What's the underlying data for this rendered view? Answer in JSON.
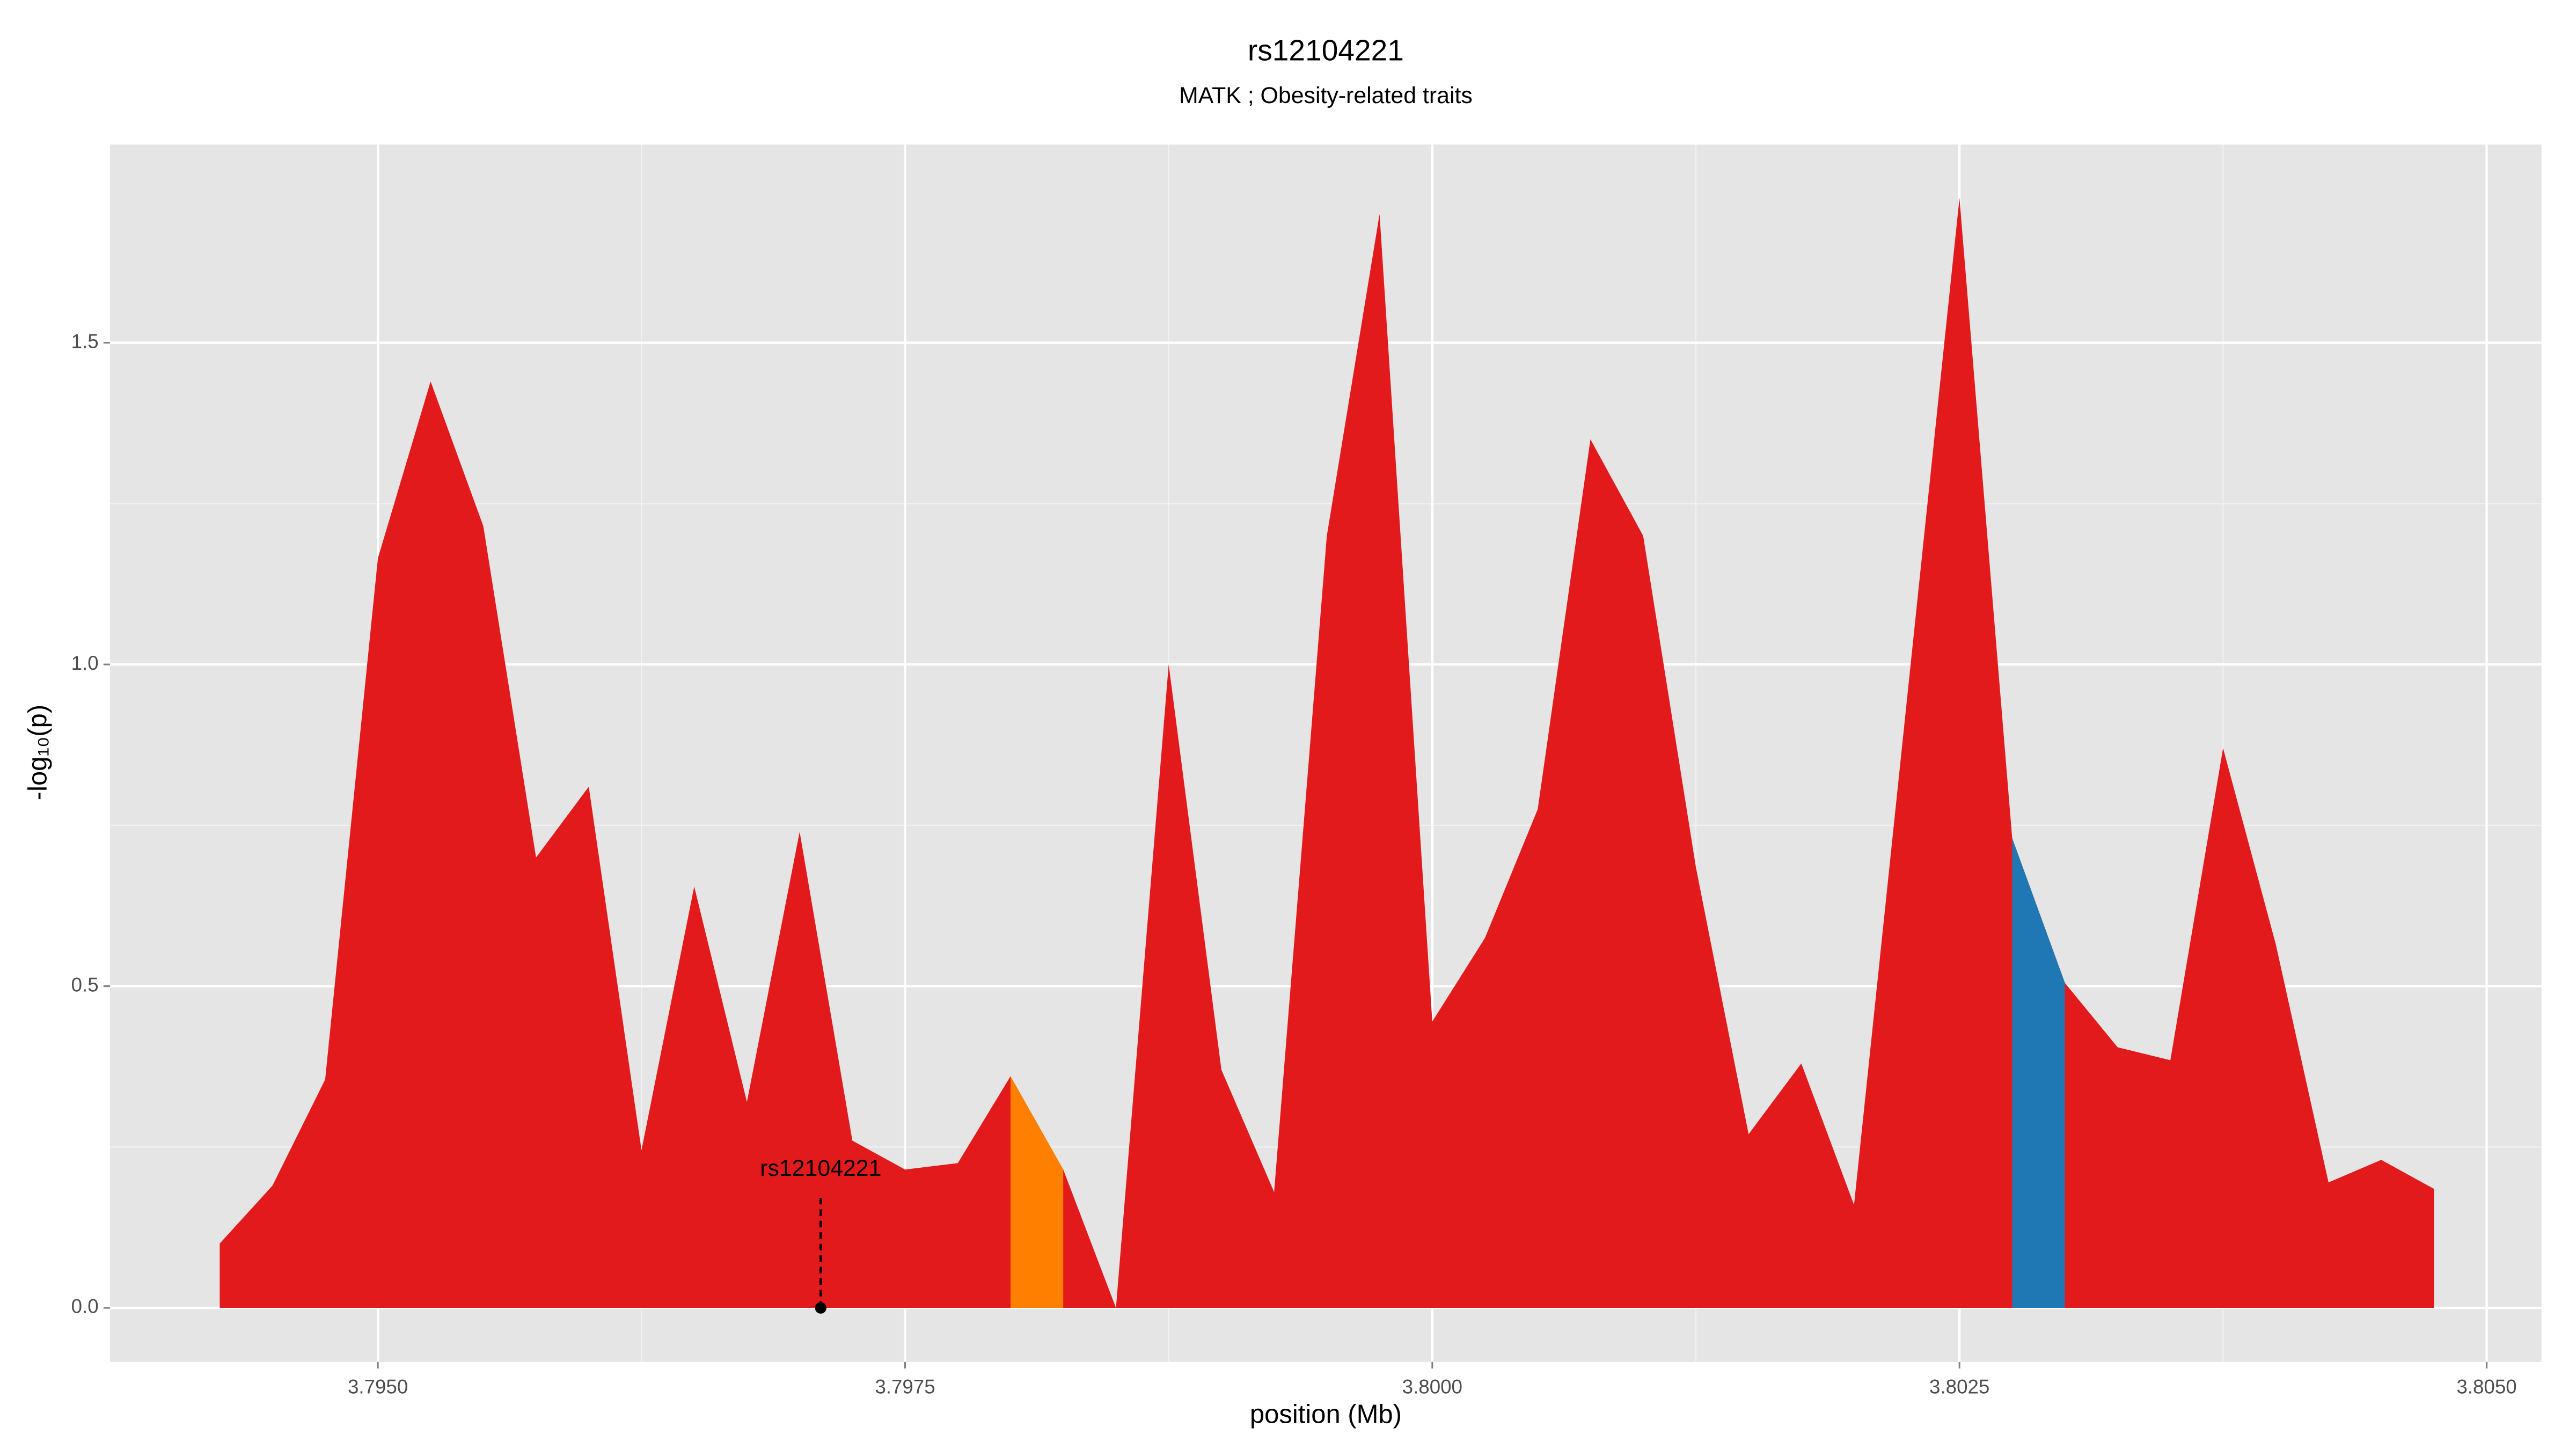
{
  "chart_data": {
    "type": "area",
    "title": "rs12104221",
    "subtitle": "MATK ; Obesity-related traits",
    "x_label": "position (Mb)",
    "y_label": "-log₁₀(p)",
    "x": [
      3.79425,
      3.7945,
      3.79475,
      3.795,
      3.79525,
      3.7955,
      3.79575,
      3.796,
      3.79625,
      3.7965,
      3.79675,
      3.797,
      3.79725,
      3.7975,
      3.79775,
      3.798,
      3.79825,
      3.7985,
      3.79875,
      3.799,
      3.79925,
      3.7995,
      3.79975,
      3.8,
      3.80025,
      3.8005,
      3.80075,
      3.801,
      3.80125,
      3.8015,
      3.80175,
      3.802,
      3.8025,
      3.80275,
      3.803,
      3.80325,
      3.8035,
      3.80375,
      3.804,
      3.80425,
      3.8045,
      3.80475
    ],
    "series": [
      {
        "color": "#e31a1c",
        "values": [
          0.1,
          0.19,
          0.355,
          1.165,
          1.44,
          1.215,
          0.7,
          0.81,
          0.245,
          0.655,
          0.32,
          0.74,
          0.26,
          0.215,
          0.225,
          0.36,
          0.215,
          0.0,
          1.0,
          0.37,
          0.18,
          1.2,
          1.7,
          0.445,
          0.575,
          0.775,
          1.35,
          1.2,
          0.685,
          0.27,
          0.38,
          0.16,
          1.725,
          0.73,
          0.505,
          0.405,
          0.385,
          0.87,
          0.565,
          0.195,
          0.23,
          0.185
        ]
      },
      {
        "color": "#ff7f00",
        "values": [
          null,
          null,
          null,
          null,
          null,
          null,
          null,
          null,
          null,
          null,
          null,
          null,
          null,
          null,
          null,
          0.36,
          0.215,
          null,
          null,
          null,
          null,
          null,
          null,
          null,
          null,
          null,
          null,
          null,
          null,
          null,
          null,
          null,
          null,
          null,
          null,
          null,
          null,
          null,
          null,
          null,
          null,
          null
        ]
      },
      {
        "color": "#1f78b4",
        "values": [
          null,
          null,
          null,
          null,
          null,
          null,
          null,
          null,
          null,
          null,
          null,
          null,
          null,
          null,
          null,
          null,
          null,
          null,
          null,
          null,
          null,
          null,
          null,
          null,
          null,
          null,
          null,
          null,
          null,
          null,
          null,
          null,
          null,
          0.73,
          0.505,
          null,
          null,
          null,
          null,
          null,
          null,
          null
        ]
      }
    ],
    "annotation": {
      "text": "rs12104221",
      "x": 3.7971,
      "y": 0
    },
    "xlim": [
      3.79373,
      3.80526
    ],
    "ylim": [
      -0.084,
      1.808
    ],
    "xticks": [
      {
        "value": 3.795,
        "label": "3.7950"
      },
      {
        "value": 3.7975,
        "label": "3.7975"
      },
      {
        "value": 3.8,
        "label": "3.8000"
      },
      {
        "value": 3.8025,
        "label": "3.8025"
      },
      {
        "value": 3.805,
        "label": "3.8050"
      }
    ],
    "yticks": [
      {
        "value": 0,
        "label": "0.0"
      },
      0.5,
      {
        "value": 1,
        "label": "1.0"
      },
      1.5
    ],
    "grid": true
  }
}
